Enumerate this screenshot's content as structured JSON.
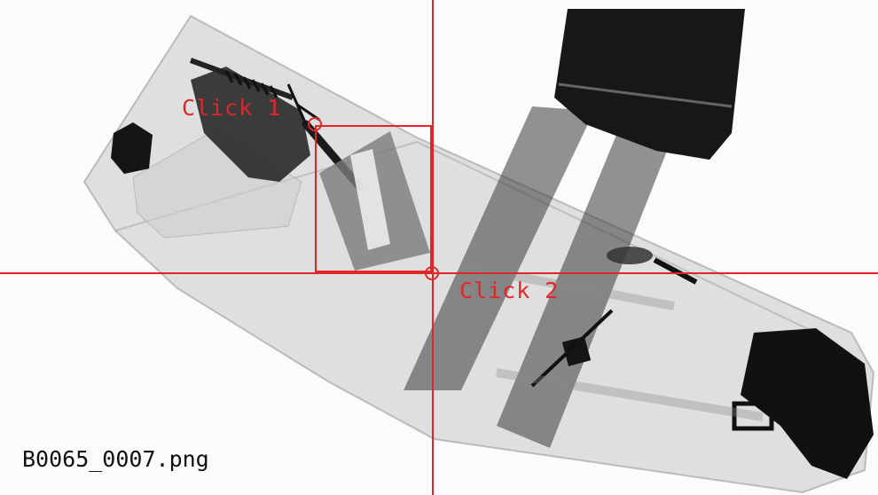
{
  "image": {
    "filename": "B0065_0007.png"
  },
  "annotations": {
    "click1_label": "Click 1",
    "click2_label": "Click 2",
    "color": "#e0262b"
  }
}
